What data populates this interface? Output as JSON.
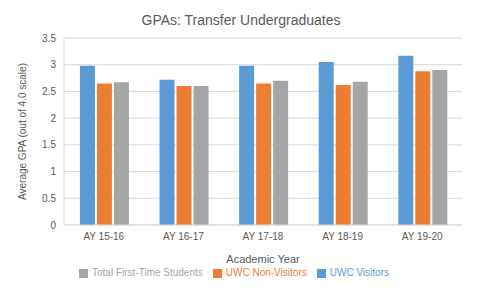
{
  "chart_data": {
    "type": "bar",
    "title": "GPAs: Transfer Undergraduates",
    "x_label": "Academic Year",
    "y_label": "Average GPA (out of 4.0 scale)",
    "categories": [
      "AY 15-16",
      "AY 16-17",
      "AY 17-18",
      "AY 18-19",
      "AY 19-20"
    ],
    "series": [
      {
        "name": "UWC Visitors",
        "color": "#5b9bd5",
        "values": [
          2.98,
          2.72,
          2.98,
          3.05,
          3.17
        ]
      },
      {
        "name": "UWC Non-Visitors",
        "color": "#ed7d31",
        "values": [
          2.65,
          2.6,
          2.65,
          2.62,
          2.88
        ]
      },
      {
        "name": "Total First-Time Students",
        "color": "#a5a5a5",
        "values": [
          2.67,
          2.6,
          2.7,
          2.68,
          2.9
        ]
      }
    ],
    "ylim": [
      0,
      3.5
    ],
    "yticks": [
      0,
      0.5,
      1,
      1.5,
      2,
      2.5,
      3,
      3.5
    ],
    "grid": true,
    "legend": "bottom"
  }
}
